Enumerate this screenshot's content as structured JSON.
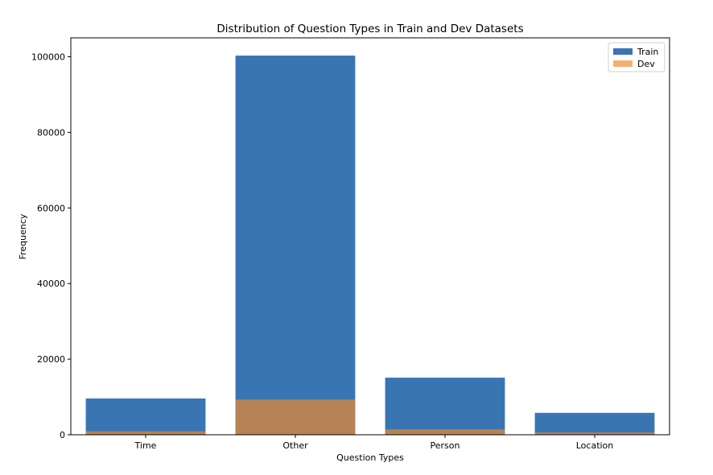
{
  "chart_data": {
    "type": "bar",
    "title": "Distribution of Question Types in Train and Dev Datasets",
    "xlabel": "Question Types",
    "ylabel": "Frequency",
    "categories": [
      "Time",
      "Other",
      "Person",
      "Location"
    ],
    "series": [
      {
        "name": "Train",
        "values": [
          9600,
          100300,
          15100,
          5800
        ],
        "color": "#1f62a8",
        "opacity": 0.88
      },
      {
        "name": "Dev",
        "values": [
          900,
          9300,
          1400,
          600
        ],
        "color": "#f08a28",
        "opacity": 0.68
      }
    ],
    "ylim": [
      0,
      105000
    ],
    "yticks": [
      0,
      20000,
      40000,
      60000,
      80000,
      100000
    ],
    "ytick_labels": [
      "0",
      "20000",
      "40000",
      "60000",
      "80000",
      "100000"
    ],
    "grid": false,
    "legend_position": "top-right",
    "overlay": true
  }
}
